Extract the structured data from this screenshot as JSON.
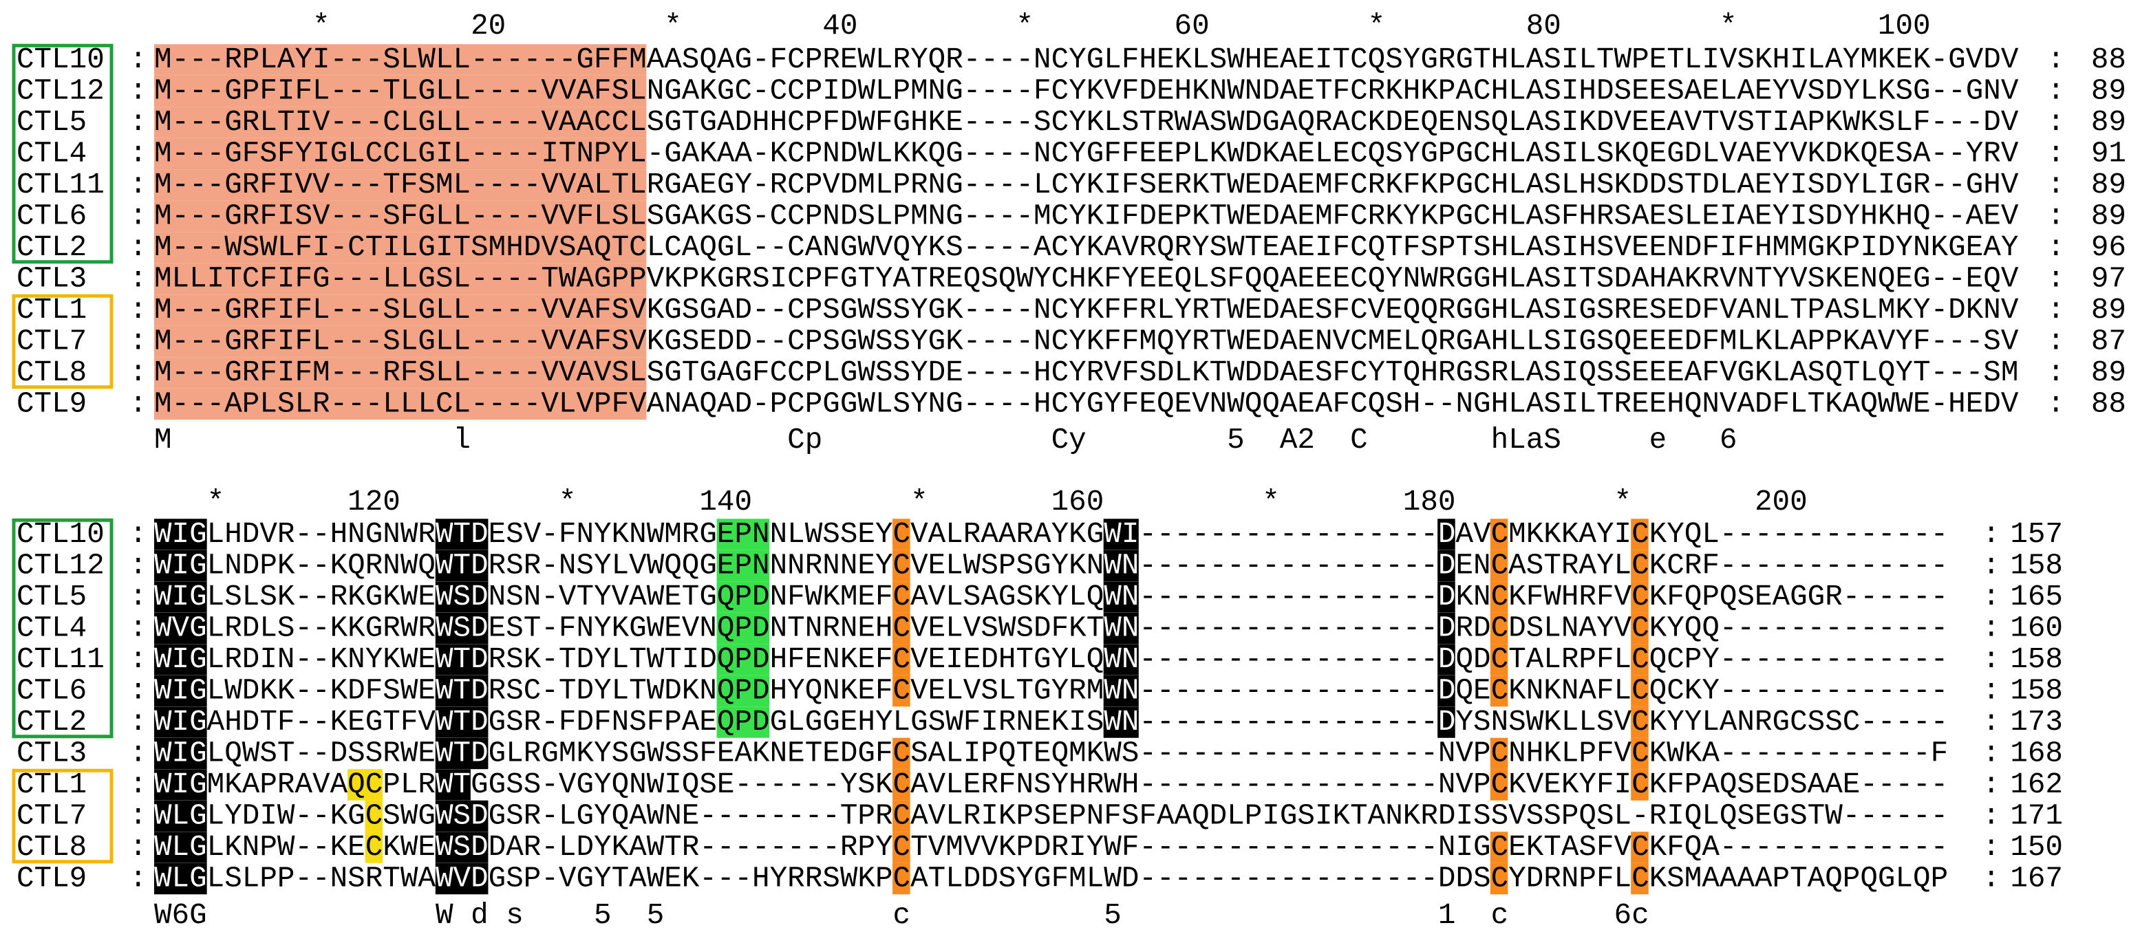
{
  "separator": ":",
  "names": [
    "CTL10",
    "CTL12",
    "CTL5",
    "CTL4",
    "CTL11",
    "CTL6",
    "CTL2",
    "CTL3",
    "CTL1",
    "CTL7",
    "CTL8",
    "CTL9"
  ],
  "blocks": [
    {
      "ruler": "         *        20         *        40         *        60         *        80         *        100",
      "rows": [
        {
          "sequence": "M---RPLAYI---SLWLL------GFFMAASQAG-FCPREWLRYQR----NCYGLFHEKLSWHEAEITCQSYGRGTHLASILTWPETLIVSKHILAYMKEK-GVDV",
          "end": 88
        },
        {
          "sequence": "M---GPFIFL---TLGLL----VVAFSLNGAKGC-CCPIDWLPMNG----FCYKVFDEHKNWNDAETFCRKHKPACHLASIHDSEESAELAEYVSDYLKSG--GNV",
          "end": 89
        },
        {
          "sequence": "M---GRLTIV---CLGLL----VAACCLSGTGADHHCPFDWFGHKE----SCYKLSTRWASWDGAQRACKDEQENSQLASIKDVEEAVTVSTIAPKWKSLF---DV",
          "end": 89
        },
        {
          "sequence": "M---GFSFYIGLCCLGIL----ITNPYL-GAKAA-KCPNDWLKKQG----NCYGFFEEPLKWDKAELECQSYGPGCHLASILSKQEGDLVAEYVKDKQESA--YRV",
          "end": 91
        },
        {
          "sequence": "M---GRFIVV---TFSML----VVALTLRGAEGY-RCPVDMLPRNG----LCYKIFSERKTWEDAEMFCRKFKPGCHLASLHSKDDSTDLAEYISDYLIGR--GHV",
          "end": 89
        },
        {
          "sequence": "M---GRFISV---SFGLL----VVFLSLSGAKGS-CCPNDSLPMNG----MCYKIFDEPKTWEDAEMFCRKYKPGCHLASFHRSAESLEIAEYISDYHKHQ--AEV",
          "end": 89
        },
        {
          "sequence": "M---WSWLFI-CTILGITSMHDVSAQTCLCAQGL--CANGWVQYKS----ACYKAVRQRYSWTEAEIFCQTFSPTSHLASIHSVEENDFIFHMMGKPIDYNKGEAY",
          "end": 96
        },
        {
          "sequence": "MLLITCFIFG---LLGSL----TWAGPPVKPKGRSICPFGTYATREQSQWYCHKFYEEQLSFQQAEEECQYNWRGGHLASITSDAHAKRVNTYVSKENQEG--EQV",
          "end": 97
        },
        {
          "sequence": "M---GRFIFL---SLGLL----VVAFSVKGSGAD--CPSGWSSYGK----NCYKFFRLYRTWEDAESFCVEQQRGGHLASIGSRESEDFVANLTPASLMKY-DKNV",
          "end": 89
        },
        {
          "sequence": "M---GRFIFL---SLGLL----VVAFSVKGSEDD--CPSGWSSYGK----NCYKFFMQYRTWEDAENVCMELQRGAHLLSIGSQEEEDFMLKLAPPKAVYF---SV",
          "end": 87
        },
        {
          "sequence": "M---GRFIFM---RFSLL----VVAVSLSGTGAGFCCPLGWSSYDE----HCYRVFSDLKTWDDAESFCYTQHRGSRLASIQSSEEEAFVGKLASQTLQYT---SM",
          "end": 89
        },
        {
          "sequence": "M---APLSLR---LLLCL----VLVPFVANAQAD-PCPGGWLSYNG----HCYGYFEQEVNWQQAEAFCQSH--NGHLASILTREEHQNVADFLTKAQWWE-HEDV",
          "end": 88
        }
      ],
      "consensus": "M                l                  Cp             Cy        5  A2  C       hLaS     e   6"
    },
    {
      "ruler": "   *       120         *       140         *       160         *       180         *       200",
      "rows": [
        {
          "sequence": "WIGLHDVR--HNGNWRWTDESV-FNYKNWMRGEPNNLWSSEYCVALRAARAYKGWI-----------------DAVCMKKKAYICKYQL-------------",
          "end": 157
        },
        {
          "sequence": "WIGLNDPK--KQRNWQWTDRSR-NSYLVWQQGEPNNNRNNEYCVELWSPSGYKNWN-----------------DENCASTRAYLCKCRF-------------",
          "end": 158
        },
        {
          "sequence": "WIGLSLSK--RKGKWEWSDNSN-VTYVAWETGQPDNFWKMEFCAVLSAGSKYLQWN-----------------DKNCKFWHRFVCKFQPQSEAGGR------",
          "end": 165
        },
        {
          "sequence": "WVGLRDLS--KKGRWRWSDEST-FNYKGWEVNQPDNTNRNEHCVELVSWSDFKTWN-----------------DRDCDSLNAYVCKYQQ-------------",
          "end": 160
        },
        {
          "sequence": "WIGLRDIN--KNYKWEWTDRSK-TDYLTWTIDQPDHFENKEFCVEIEDHTGYLQWN-----------------DQDCTALRPFLCQCPY-------------",
          "end": 158
        },
        {
          "sequence": "WIGLWDKK--KDFSWEWTDRSC-TDYLTWDKNQPDHYQNKEFCVELVSLTGYRMWN-----------------DQECKNKNAFLCQCKY-------------",
          "end": 158
        },
        {
          "sequence": "WIGAHDTF--KEGTFVWTDGSR-FDFNSFPAEQPDGLGGEHYLGSWFIRNEKISWN-----------------DYSNSWKLLSVCKYYLANRGCSSC-----",
          "end": 173
        },
        {
          "sequence": "WIGLQWST--DSSRWEWTDGLRGMKYSGWSSFEAKNETEDGFCSALIPQTEQMKWS-----------------NVPCNHKLPFVCKWKA------------F",
          "end": 168
        },
        {
          "sequence": "WIGMKAPRAVAQCPLRWTGGSS-VGYQNWIQSE------YSKCAVLERFNSYHRWH-----------------NVPCKVEKYFICKFPAQSEDSAAE-----",
          "end": 162
        },
        {
          "sequence": "WLGLYDIW--KGCSWGWSDGSR-LGYQAWNE--------TPRCAVLRIKPSEPNFSFAAQDLPIGSIKTANKRDISSVSSPQSL-RIQLQSEGSTW------",
          "end": 171
        },
        {
          "sequence": "WLGLKNPW--KECKWEWSDDAR-LDYKAWTR--------RPYCTVMVVKPDRIYWF-----------------NIGCEKTASFVCKFQA-------------",
          "end": 150
        },
        {
          "sequence": "WLGLSLPP--NSRTWAWVDGSP-VGYTAWEK---HYRRSWKPCATLDDSYGFMLWD-----------------DDSCYDRNPFLCKSMAAAAPTAQPQGLQP",
          "end": 167
        }
      ],
      "consensus": "W6G             W d s    5  5             c           5                  1  c      6c"
    }
  ]
}
